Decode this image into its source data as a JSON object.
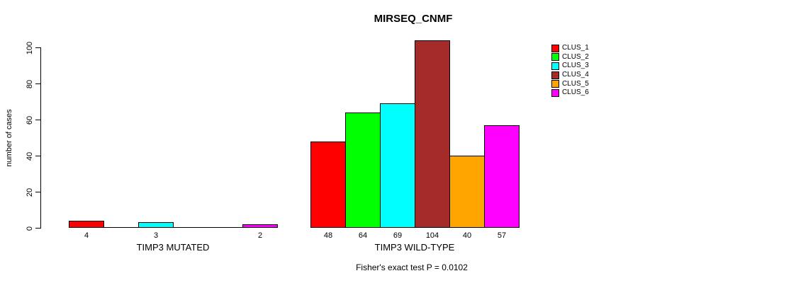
{
  "figure": {
    "title": "MIRSEQ_CNMF",
    "subtitle": "Fisher's exact test P = 0.0102"
  },
  "chart_data": {
    "type": "bar",
    "title": "MIRSEQ_CNMF",
    "xlabel": "",
    "ylabel": "number of cases",
    "ylim": [
      0,
      100
    ],
    "yticks": [
      0,
      20,
      40,
      60,
      80,
      100
    ],
    "grid": false,
    "legend_position": "right-outside",
    "annotation": "Fisher's exact test P = 0.0102",
    "categories": [
      "TIMP3 MUTATED",
      "TIMP3 WILD-TYPE"
    ],
    "series": [
      {
        "name": "CLUS_1",
        "color": "#FF0000",
        "values": [
          4,
          48
        ]
      },
      {
        "name": "CLUS_2",
        "color": "#00FF00",
        "values": [
          0,
          64
        ]
      },
      {
        "name": "CLUS_3",
        "color": "#00FFFF",
        "values": [
          3,
          69
        ]
      },
      {
        "name": "CLUS_4",
        "color": "#A52A2A",
        "values": [
          0,
          104
        ]
      },
      {
        "name": "CLUS_5",
        "color": "#FFA500",
        "values": [
          0,
          40
        ]
      },
      {
        "name": "CLUS_6",
        "color": "#FF00FF",
        "values": [
          2,
          57
        ]
      }
    ],
    "bar_value_labels_shown": true,
    "bar_value_labels_hide_zero": true
  }
}
